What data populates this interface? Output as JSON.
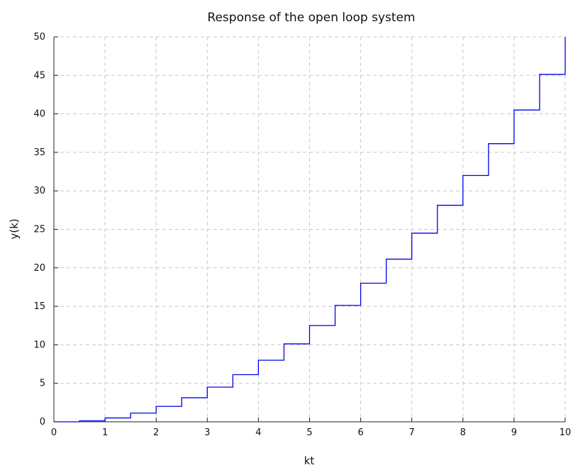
{
  "chart_data": {
    "type": "line",
    "step": "post",
    "title": "Response of the open loop system",
    "xlabel": "kt",
    "ylabel": "y(k)",
    "xlim": [
      0,
      10
    ],
    "ylim": [
      0,
      50
    ],
    "xticks": [
      0,
      1,
      2,
      3,
      4,
      5,
      6,
      7,
      8,
      9,
      10
    ],
    "yticks": [
      0,
      5,
      10,
      15,
      20,
      25,
      30,
      35,
      40,
      45,
      50
    ],
    "grid": true,
    "grid_style": "dashed",
    "series": [
      {
        "color": "#0000ee",
        "x": [
          0,
          0.5,
          1,
          1.5,
          2,
          2.5,
          3,
          3.5,
          4,
          4.5,
          5,
          5.5,
          6,
          6.5,
          7,
          7.5,
          8,
          8.5,
          9,
          9.5,
          10
        ],
        "y": [
          0,
          0.125,
          0.5,
          1.125,
          2,
          3.125,
          4.5,
          6.125,
          8,
          10.125,
          12.5,
          15.125,
          18,
          21.125,
          24.5,
          28.125,
          32,
          36.125,
          40.5,
          45.125,
          50
        ]
      }
    ]
  },
  "colors": {
    "series": "#0000ee",
    "grid": "#c8c8c8",
    "axes": "#222222",
    "background": "#ffffff"
  }
}
